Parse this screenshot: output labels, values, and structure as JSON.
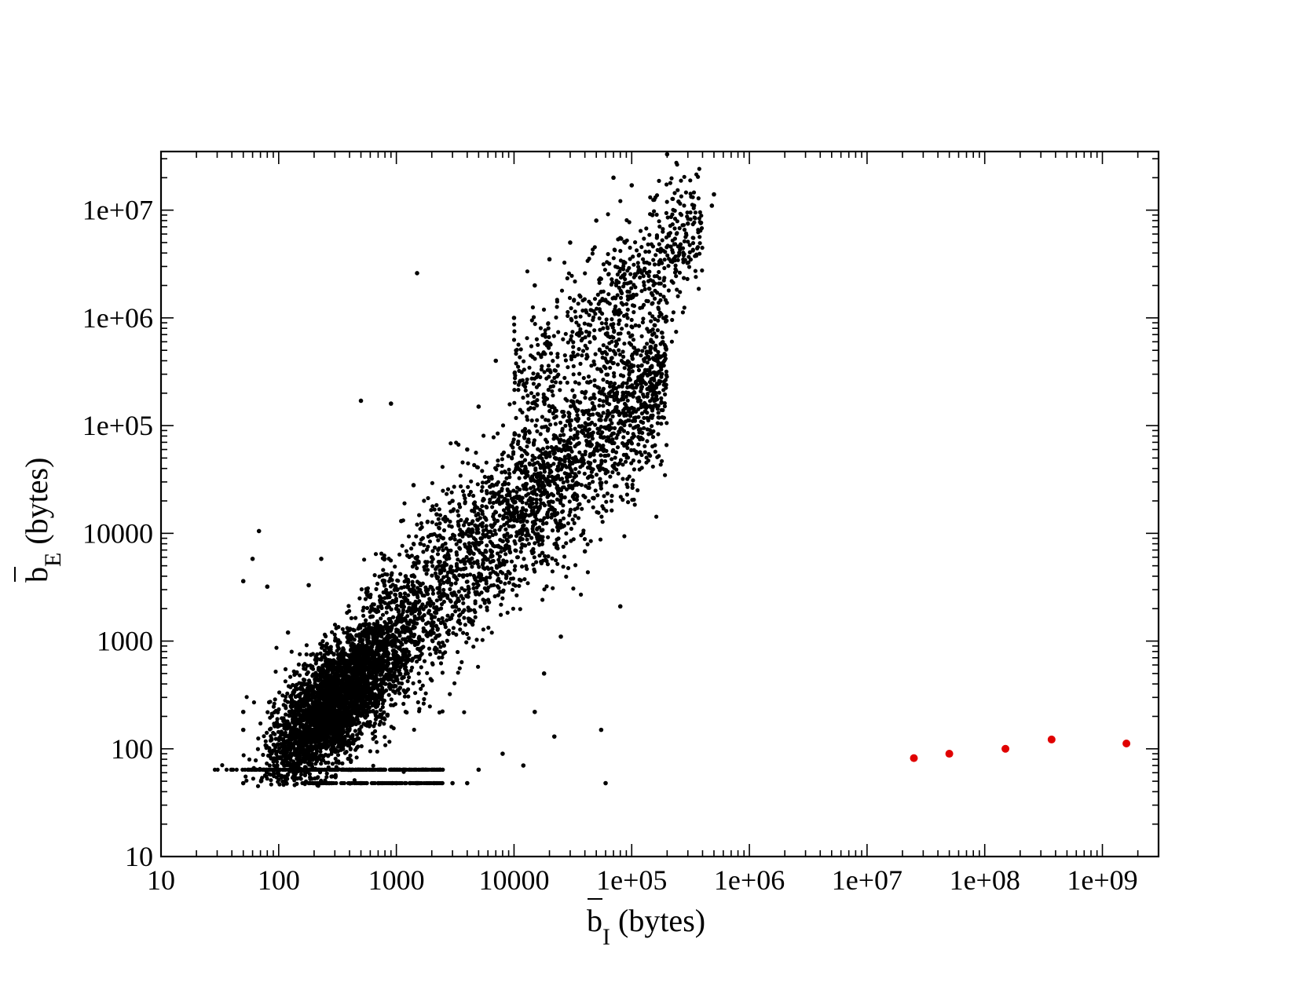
{
  "chart_data": {
    "type": "scatter",
    "title": "",
    "xlabel": {
      "base": "b",
      "subscript": "I",
      "suffix": " (bytes)"
    },
    "ylabel": {
      "base": "b",
      "subscript": "E",
      "suffix": " (bytes)"
    },
    "xscale": "log",
    "yscale": "log",
    "xlim": [
      10,
      3000000000
    ],
    "ylim": [
      10,
      35000000
    ],
    "xticks": [
      10,
      100,
      1000,
      10000,
      100000,
      1000000,
      10000000,
      100000000,
      1000000000
    ],
    "xtick_labels": [
      "10",
      "100",
      "1000",
      "10000",
      "1e+05",
      "1e+06",
      "1e+07",
      "1e+08",
      "1e+09"
    ],
    "yticks": [
      10,
      100,
      1000,
      10000,
      100000,
      1000000,
      10000000
    ],
    "ytick_labels": [
      "10",
      "100",
      "1000",
      "10000",
      "1e+05",
      "1e+06",
      "1e+07"
    ],
    "grid": false,
    "legend": "none",
    "series": [
      {
        "color": "#000000",
        "approximate_point_count": 15000,
        "distribution": "dense band roughly along y ≈ x from x≈50 to x≈500000; floor rows at y≈64 and y≈48",
        "points": [
          [
            50,
            3600
          ],
          [
            60,
            5800
          ],
          [
            68,
            10500
          ],
          [
            80,
            3200
          ],
          [
            50,
            220
          ],
          [
            50,
            150
          ],
          [
            50,
            48
          ],
          [
            120,
            1200
          ],
          [
            150,
            140
          ],
          [
            180,
            3300
          ],
          [
            230,
            5800
          ],
          [
            1500,
            2600000
          ],
          [
            500,
            170000
          ],
          [
            900,
            160000
          ],
          [
            1400,
            28000
          ],
          [
            1100,
            13000
          ],
          [
            2000,
            6000
          ],
          [
            2500,
            9000
          ],
          [
            3000,
            20000
          ],
          [
            4000,
            60000
          ],
          [
            5000,
            150000
          ],
          [
            7000,
            400000
          ],
          [
            10000,
            1000000
          ],
          [
            15000,
            2000000
          ],
          [
            20000,
            3500000
          ],
          [
            30000,
            5000000
          ],
          [
            50000,
            8000000
          ],
          [
            80000,
            5500000
          ],
          [
            70000,
            20000000
          ],
          [
            100000,
            17000000
          ],
          [
            150000,
            9000000
          ],
          [
            200000,
            33000000
          ],
          [
            250000,
            12000000
          ],
          [
            300000,
            7500000
          ],
          [
            500000,
            14000000
          ],
          [
            480000,
            11000000
          ],
          [
            80000,
            2100
          ],
          [
            60000,
            48
          ],
          [
            55000,
            150
          ],
          [
            25000,
            1100
          ],
          [
            18000,
            500
          ],
          [
            22000,
            130
          ],
          [
            40000,
            6800
          ],
          [
            45000,
            34000
          ],
          [
            30000,
            34000
          ],
          [
            300,
            64
          ],
          [
            400,
            64
          ],
          [
            500,
            48
          ],
          [
            700,
            48
          ],
          [
            1000,
            48
          ],
          [
            1500,
            48
          ],
          [
            3000,
            48
          ],
          [
            4000,
            48
          ],
          [
            5000,
            64
          ],
          [
            8000,
            90
          ],
          [
            15000,
            220
          ],
          [
            12000,
            70
          ],
          [
            700,
            300
          ],
          [
            900,
            1500
          ],
          [
            1200,
            4000
          ],
          [
            1600,
            8000
          ],
          [
            2200,
            15000
          ],
          [
            600,
            600
          ],
          [
            800,
            900
          ],
          [
            1000,
            2000
          ],
          [
            1300,
            3000
          ],
          [
            1800,
            5000
          ]
        ]
      },
      {
        "color": "#e00000",
        "points": [
          [
            25000000,
            82
          ],
          [
            50000000,
            90
          ],
          [
            150000000,
            100
          ],
          [
            370000000,
            122
          ],
          [
            1600000000,
            112
          ]
        ]
      }
    ]
  }
}
